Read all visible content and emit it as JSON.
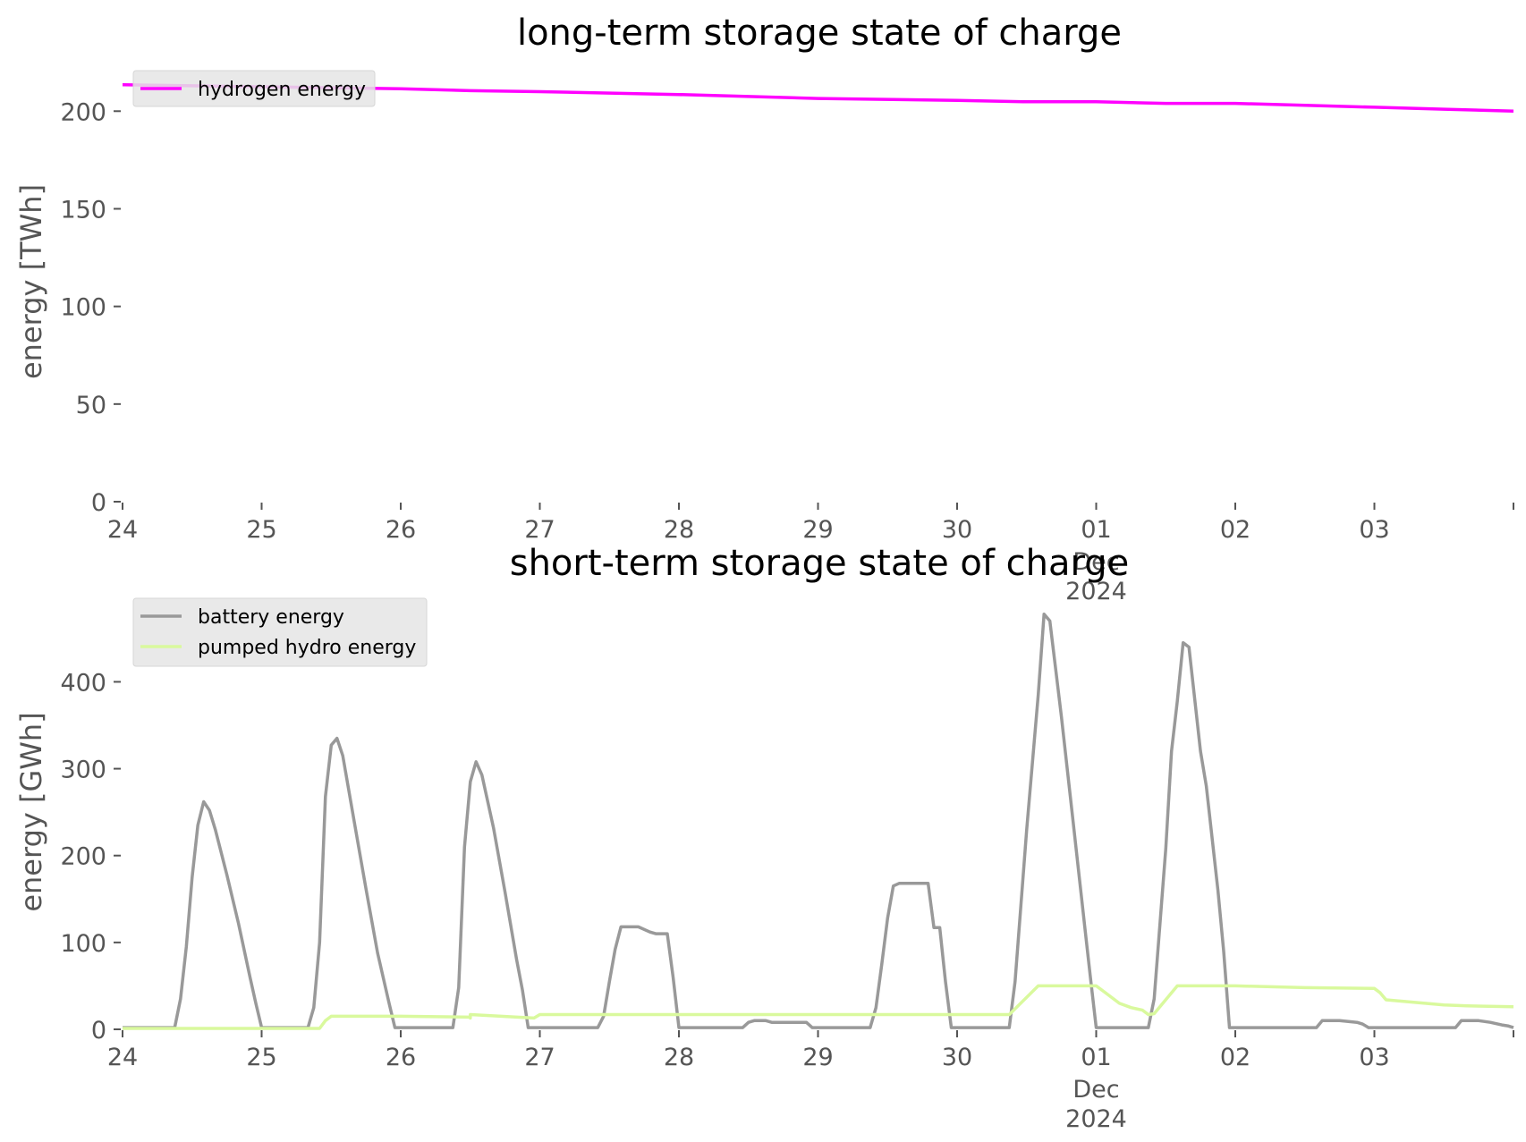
{
  "chart_data": [
    {
      "type": "line",
      "title": "long-term storage state of charge",
      "ylabel": "energy [TWh]",
      "xlabel": "",
      "ylim": [
        0,
        218
      ],
      "yticks": [
        0,
        50,
        100,
        150,
        200
      ],
      "xlim": [
        "2024-11-24T00:00",
        "2024-12-04T00:00"
      ],
      "xticks": [
        {
          "x": "2024-11-24T00:00",
          "label": "24"
        },
        {
          "x": "2024-11-25T00:00",
          "label": "25"
        },
        {
          "x": "2024-11-26T00:00",
          "label": "26"
        },
        {
          "x": "2024-11-27T00:00",
          "label": "27"
        },
        {
          "x": "2024-11-28T00:00",
          "label": "28"
        },
        {
          "x": "2024-11-29T00:00",
          "label": "29"
        },
        {
          "x": "2024-11-30T00:00",
          "label": "30"
        },
        {
          "x": "2024-12-01T00:00",
          "label": "01",
          "sublabels": [
            "Dec",
            "2024"
          ]
        },
        {
          "x": "2024-12-02T00:00",
          "label": "02"
        },
        {
          "x": "2024-12-03T00:00",
          "label": "03"
        },
        {
          "x": "2024-12-04T00:00",
          "label": ""
        }
      ],
      "grid": false,
      "legend_position": "top-left",
      "series": [
        {
          "name": "hydrogen energy",
          "color": "#ff00ff",
          "points": [
            [
              "2024-11-24T00:00",
              213.5
            ],
            [
              "2024-11-25T00:00",
              212.5
            ],
            [
              "2024-11-26T00:00",
              211.5
            ],
            [
              "2024-11-26T12:00",
              210.5
            ],
            [
              "2024-11-27T00:00",
              210.0
            ],
            [
              "2024-11-28T00:00",
              208.5
            ],
            [
              "2024-11-28T12:00",
              207.5
            ],
            [
              "2024-11-29T00:00",
              206.5
            ],
            [
              "2024-11-30T00:00",
              205.5
            ],
            [
              "2024-11-30T12:00",
              204.8
            ],
            [
              "2024-12-01T00:00",
              204.8
            ],
            [
              "2024-12-01T12:00",
              204.0
            ],
            [
              "2024-12-02T00:00",
              204.0
            ],
            [
              "2024-12-02T12:00",
              203.0
            ],
            [
              "2024-12-03T00:00",
              202.0
            ],
            [
              "2024-12-03T12:00",
              201.0
            ],
            [
              "2024-12-04T00:00",
              200.0
            ]
          ]
        }
      ]
    },
    {
      "type": "line",
      "title": "short-term storage state of charge",
      "ylabel": "energy [GWh]",
      "xlabel": "",
      "ylim": [
        0,
        490
      ],
      "yticks": [
        0,
        100,
        200,
        300,
        400
      ],
      "xlim": [
        "2024-11-24T00:00",
        "2024-12-04T00:00"
      ],
      "xticks": [
        {
          "x": "2024-11-24T00:00",
          "label": "24"
        },
        {
          "x": "2024-11-25T00:00",
          "label": "25"
        },
        {
          "x": "2024-11-26T00:00",
          "label": "26"
        },
        {
          "x": "2024-11-27T00:00",
          "label": "27"
        },
        {
          "x": "2024-11-28T00:00",
          "label": "28"
        },
        {
          "x": "2024-11-29T00:00",
          "label": "29"
        },
        {
          "x": "2024-11-30T00:00",
          "label": "30"
        },
        {
          "x": "2024-12-01T00:00",
          "label": "01",
          "sublabels": [
            "Dec",
            "2024"
          ]
        },
        {
          "x": "2024-12-02T00:00",
          "label": "02"
        },
        {
          "x": "2024-12-03T00:00",
          "label": "03"
        },
        {
          "x": "2024-12-04T00:00",
          "label": ""
        }
      ],
      "grid": false,
      "legend_position": "top-left",
      "series": [
        {
          "name": "battery energy",
          "color": "#999999",
          "points": [
            [
              "2024-11-24T00:00",
              2
            ],
            [
              "2024-11-24T09:00",
              2
            ],
            [
              "2024-11-24T10:00",
              35
            ],
            [
              "2024-11-24T11:00",
              95
            ],
            [
              "2024-11-24T12:00",
              175
            ],
            [
              "2024-11-24T13:00",
              235
            ],
            [
              "2024-11-24T14:00",
              262
            ],
            [
              "2024-11-24T15:00",
              252
            ],
            [
              "2024-11-24T16:00",
              230
            ],
            [
              "2024-11-24T18:00",
              178
            ],
            [
              "2024-11-24T20:00",
              122
            ],
            [
              "2024-11-24T22:00",
              60
            ],
            [
              "2024-11-24T23:00",
              30
            ],
            [
              "2024-11-25T00:00",
              2
            ],
            [
              "2024-11-25T08:00",
              2
            ],
            [
              "2024-11-25T09:00",
              25
            ],
            [
              "2024-11-25T10:00",
              100
            ],
            [
              "2024-11-25T11:00",
              268
            ],
            [
              "2024-11-25T12:00",
              327
            ],
            [
              "2024-11-25T13:00",
              335
            ],
            [
              "2024-11-25T14:00",
              315
            ],
            [
              "2024-11-25T16:00",
              238
            ],
            [
              "2024-11-25T18:00",
              162
            ],
            [
              "2024-11-25T20:00",
              88
            ],
            [
              "2024-11-25T22:00",
              30
            ],
            [
              "2024-11-25T23:00",
              2
            ],
            [
              "2024-11-26T09:00",
              2
            ],
            [
              "2024-11-26T10:00",
              48
            ],
            [
              "2024-11-26T11:00",
              210
            ],
            [
              "2024-11-26T12:00",
              285
            ],
            [
              "2024-11-26T13:00",
              308
            ],
            [
              "2024-11-26T14:00",
              293
            ],
            [
              "2024-11-26T16:00",
              232
            ],
            [
              "2024-11-26T18:00",
              158
            ],
            [
              "2024-11-26T20:00",
              80
            ],
            [
              "2024-11-26T21:00",
              45
            ],
            [
              "2024-11-26T22:00",
              2
            ],
            [
              "2024-11-27T10:00",
              2
            ],
            [
              "2024-11-27T11:00",
              15
            ],
            [
              "2024-11-27T12:00",
              55
            ],
            [
              "2024-11-27T13:00",
              92
            ],
            [
              "2024-11-27T14:00",
              118
            ],
            [
              "2024-11-27T17:00",
              118
            ],
            [
              "2024-11-27T19:00",
              112
            ],
            [
              "2024-11-27T20:00",
              110
            ],
            [
              "2024-11-27T22:00",
              110
            ],
            [
              "2024-11-27T23:00",
              60
            ],
            [
              "2024-11-28T00:00",
              2
            ],
            [
              "2024-11-28T11:00",
              2
            ],
            [
              "2024-11-28T12:00",
              8
            ],
            [
              "2024-11-28T13:00",
              10
            ],
            [
              "2024-11-28T15:00",
              10
            ],
            [
              "2024-11-28T16:00",
              8
            ],
            [
              "2024-11-28T22:00",
              8
            ],
            [
              "2024-11-28T23:00",
              2
            ],
            [
              "2024-11-29T09:00",
              2
            ],
            [
              "2024-11-29T10:00",
              25
            ],
            [
              "2024-11-29T11:00",
              75
            ],
            [
              "2024-11-29T12:00",
              128
            ],
            [
              "2024-11-29T13:00",
              165
            ],
            [
              "2024-11-29T14:00",
              168
            ],
            [
              "2024-11-29T19:00",
              168
            ],
            [
              "2024-11-29T20:00",
              117
            ],
            [
              "2024-11-29T21:00",
              117
            ],
            [
              "2024-11-29T22:00",
              55
            ],
            [
              "2024-11-29T23:00",
              2
            ],
            [
              "2024-11-30T09:00",
              2
            ],
            [
              "2024-11-30T10:00",
              55
            ],
            [
              "2024-11-30T12:00",
              230
            ],
            [
              "2024-11-30T14:00",
              385
            ],
            [
              "2024-11-30T15:00",
              478
            ],
            [
              "2024-11-30T16:00",
              470
            ],
            [
              "2024-11-30T18:00",
              360
            ],
            [
              "2024-11-30T20:00",
              240
            ],
            [
              "2024-11-30T22:00",
              120
            ],
            [
              "2024-11-30T23:00",
              60
            ],
            [
              "2024-12-01T00:00",
              2
            ],
            [
              "2024-12-01T09:00",
              2
            ],
            [
              "2024-12-01T10:00",
              35
            ],
            [
              "2024-12-01T12:00",
              208
            ],
            [
              "2024-12-01T13:00",
              320
            ],
            [
              "2024-12-01T14:00",
              378
            ],
            [
              "2024-12-01T15:00",
              445
            ],
            [
              "2024-12-01T16:00",
              440
            ],
            [
              "2024-12-01T18:00",
              320
            ],
            [
              "2024-12-01T19:00",
              280
            ],
            [
              "2024-12-01T21:00",
              160
            ],
            [
              "2024-12-01T22:00",
              90
            ],
            [
              "2024-12-01T23:00",
              2
            ],
            [
              "2024-12-02T14:00",
              2
            ],
            [
              "2024-12-02T15:00",
              10
            ],
            [
              "2024-12-02T18:00",
              10
            ],
            [
              "2024-12-02T21:00",
              8
            ],
            [
              "2024-12-02T22:00",
              6
            ],
            [
              "2024-12-02T23:00",
              2
            ],
            [
              "2024-12-03T14:00",
              2
            ],
            [
              "2024-12-03T15:00",
              10
            ],
            [
              "2024-12-03T18:00",
              10
            ],
            [
              "2024-12-03T20:00",
              8
            ],
            [
              "2024-12-03T22:00",
              5
            ],
            [
              "2024-12-03T23:00",
              4
            ],
            [
              "2024-12-04T00:00",
              2
            ]
          ]
        },
        {
          "name": "pumped hydro energy",
          "color": "#d9f99d",
          "points": [
            [
              "2024-11-24T00:00",
              1
            ],
            [
              "2024-11-25T10:00",
              1
            ],
            [
              "2024-11-25T11:00",
              10
            ],
            [
              "2024-11-25T12:00",
              15
            ],
            [
              "2024-11-26T00:00",
              15
            ],
            [
              "2024-11-26T12:00",
              14
            ],
            [
              "2024-11-26T23:00",
              13
            ],
            [
              "2024-11-26T12:00",
              13
            ],
            [
              "2024-11-26T12:00",
              17
            ],
            [
              "2024-11-27T00:00",
              17
            ],
            [
              "2024-11-28T00:00",
              17
            ],
            [
              "2024-11-29T00:00",
              17
            ],
            [
              "2024-11-30T00:00",
              17
            ],
            [
              "2024-11-30T09:00",
              17
            ],
            [
              "2024-11-30T14:00",
              50
            ],
            [
              "2024-12-01T00:00",
              50
            ],
            [
              "2024-12-01T02:00",
              40
            ],
            [
              "2024-12-01T04:00",
              30
            ],
            [
              "2024-12-01T06:00",
              25
            ],
            [
              "2024-12-01T08:00",
              22
            ],
            [
              "2024-12-01T09:00",
              17
            ],
            [
              "2024-12-01T10:00",
              18
            ],
            [
              "2024-12-01T14:00",
              50
            ],
            [
              "2024-12-02T00:00",
              50
            ],
            [
              "2024-12-02T12:00",
              48
            ],
            [
              "2024-12-03T00:00",
              47
            ],
            [
              "2024-12-03T01:00",
              42
            ],
            [
              "2024-12-03T02:00",
              34
            ],
            [
              "2024-12-03T12:00",
              28
            ],
            [
              "2024-12-03T16:00",
              27
            ],
            [
              "2024-12-04T00:00",
              26
            ]
          ]
        }
      ]
    }
  ]
}
